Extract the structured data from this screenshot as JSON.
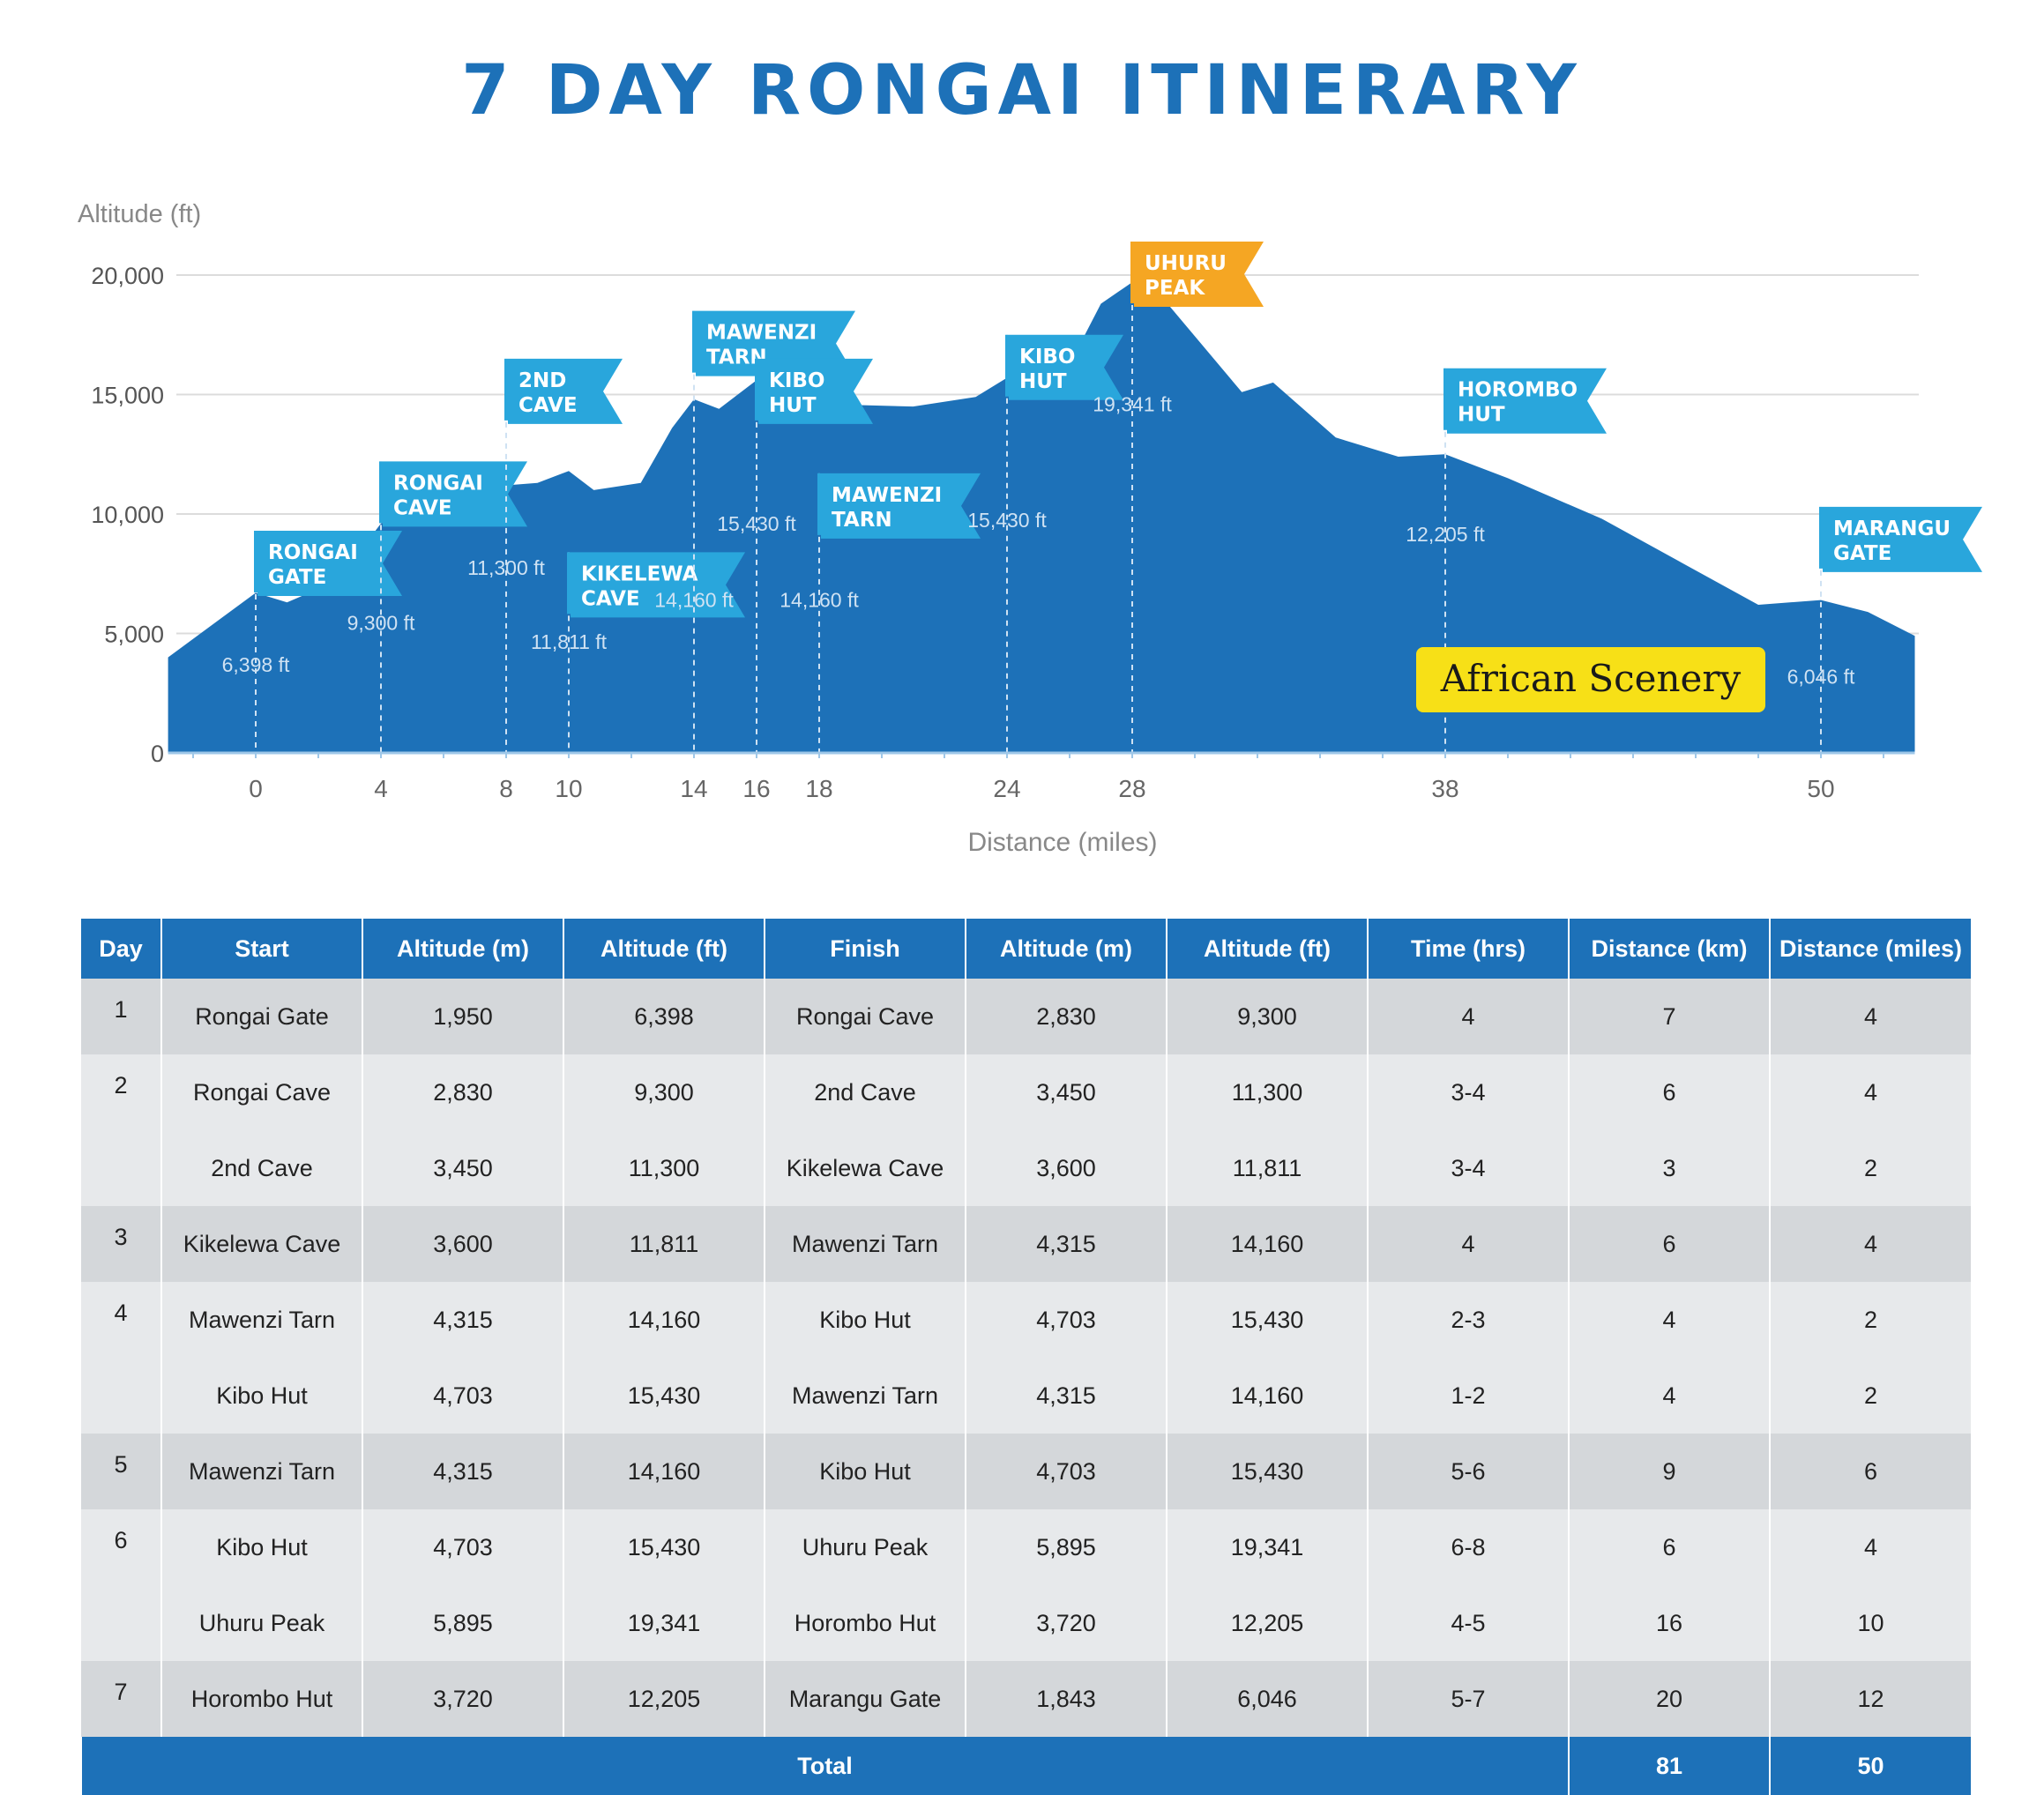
{
  "title": "7 DAY RONGAI ITINERARY",
  "colors": {
    "primary": "#1d71b8",
    "flag": "#29a6dc",
    "summit_flag": "#f5a623",
    "watermark_bg": "#f7e017"
  },
  "watermark": "African Scenery",
  "chart_data": {
    "type": "area",
    "title": "7 DAY RONGAI ITINERARY",
    "xlabel": "Distance (miles)",
    "ylabel": "Altitude (ft)",
    "xlim": [
      -2,
      53
    ],
    "ylim": [
      0,
      20000
    ],
    "x_ticks": [
      0,
      4,
      8,
      10,
      14,
      16,
      18,
      24,
      28,
      38,
      50
    ],
    "y_ticks": [
      {
        "value": 0,
        "label": "0"
      },
      {
        "value": 5000,
        "label": "5,000"
      },
      {
        "value": 10000,
        "label": "10,000"
      },
      {
        "value": 15000,
        "label": "15,000"
      },
      {
        "value": 20000,
        "label": "20,000"
      }
    ],
    "profile": [
      [
        -2.8,
        4000
      ],
      [
        0,
        6700
      ],
      [
        1,
        6300
      ],
      [
        2.6,
        7200
      ],
      [
        4,
        9600
      ],
      [
        5,
        10000
      ],
      [
        6.5,
        10100
      ],
      [
        8,
        11200
      ],
      [
        9,
        11300
      ],
      [
        10,
        11800
      ],
      [
        10.8,
        11000
      ],
      [
        12.3,
        11300
      ],
      [
        13.3,
        13600
      ],
      [
        14,
        14800
      ],
      [
        14.8,
        14400
      ],
      [
        16,
        15600
      ],
      [
        17,
        14600
      ],
      [
        18,
        14600
      ],
      [
        21,
        14500
      ],
      [
        23,
        14900
      ],
      [
        24,
        15700
      ],
      [
        25.5,
        15000
      ],
      [
        27,
        18800
      ],
      [
        28,
        19700
      ],
      [
        29,
        19000
      ],
      [
        31.5,
        15100
      ],
      [
        32.5,
        15500
      ],
      [
        34.5,
        13200
      ],
      [
        36.5,
        12400
      ],
      [
        38,
        12500
      ],
      [
        40,
        11500
      ],
      [
        43,
        9800
      ],
      [
        48,
        6200
      ],
      [
        50,
        6400
      ],
      [
        51.5,
        5900
      ],
      [
        53,
        4900
      ]
    ],
    "points": [
      {
        "x": 0,
        "label": "6,398 ft",
        "flag": "RONGAI GATE",
        "flag_alt": 9300,
        "label_alt": 3400
      },
      {
        "x": 4,
        "label": "9,300 ft",
        "flag": "RONGAI CAVE",
        "flag_alt": 12200,
        "label_alt": 5150
      },
      {
        "x": 8,
        "label": "11,300 ft",
        "flag": "2ND CAVE",
        "flag_alt": 16500,
        "label_alt": 7450
      },
      {
        "x": 10,
        "label": "11,811 ft",
        "flag": "KIKELEWA CAVE",
        "flag_alt": 8400,
        "label_alt": 4350
      },
      {
        "x": 14,
        "label": "14,160 ft",
        "flag": "MAWENZI TARN",
        "flag_alt": 18500,
        "label_alt": 6100
      },
      {
        "x": 16,
        "label": "15,430 ft",
        "flag": "KIBO HUT",
        "flag_alt": 16500,
        "label_alt": 9300
      },
      {
        "x": 18,
        "label": "14,160 ft",
        "flag": "MAWENZI TARN",
        "flag_alt": 11700,
        "label_alt": 6100
      },
      {
        "x": 24,
        "label": "15,430 ft",
        "flag": "KIBO HUT",
        "flag_alt": 17500,
        "label_alt": 9450
      },
      {
        "x": 28,
        "label": "19,341 ft",
        "flag": "UHURU PEAK",
        "flag_alt": 21400,
        "label_alt": 14300,
        "summit": true
      },
      {
        "x": 38,
        "label": "12,205 ft",
        "flag": "HOROMBO HUT",
        "flag_alt": 16100,
        "label_alt": 8850
      },
      {
        "x": 50,
        "label": "6,046 ft",
        "flag": "MARANGU GATE",
        "flag_alt": 10300,
        "label_alt": 2900
      }
    ]
  },
  "table": {
    "headers": [
      "Day",
      "Start",
      "Altitude (m)",
      "Altitude (ft)",
      "Finish",
      "Altitude (m)",
      "Altitude (ft)",
      "Time (hrs)",
      "Distance (km)",
      "Distance (miles)"
    ],
    "rows": [
      {
        "day": "1",
        "start": "Rongai Gate",
        "start_m": "1,950",
        "start_ft": "6,398",
        "finish": "Rongai Cave",
        "finish_m": "2,830",
        "finish_ft": "9,300",
        "time": "4",
        "km": "7",
        "miles": "4"
      },
      {
        "day": "2",
        "start": "Rongai Cave",
        "start_m": "2,830",
        "start_ft": "9,300",
        "finish": "2nd Cave",
        "finish_m": "3,450",
        "finish_ft": "11,300",
        "time": "3-4",
        "km": "6",
        "miles": "4"
      },
      {
        "day": "",
        "start": "2nd Cave",
        "start_m": "3,450",
        "start_ft": "11,300",
        "finish": "Kikelewa Cave",
        "finish_m": "3,600",
        "finish_ft": "11,811",
        "time": "3-4",
        "km": "3",
        "miles": "2"
      },
      {
        "day": "3",
        "start": "Kikelewa Cave",
        "start_m": "3,600",
        "start_ft": "11,811",
        "finish": "Mawenzi Tarn",
        "finish_m": "4,315",
        "finish_ft": "14,160",
        "time": "4",
        "km": "6",
        "miles": "4"
      },
      {
        "day": "4",
        "start": "Mawenzi Tarn",
        "start_m": "4,315",
        "start_ft": "14,160",
        "finish": "Kibo Hut",
        "finish_m": "4,703",
        "finish_ft": "15,430",
        "time": "2-3",
        "km": "4",
        "miles": "2"
      },
      {
        "day": "",
        "start": "Kibo Hut",
        "start_m": "4,703",
        "start_ft": "15,430",
        "finish": "Mawenzi Tarn",
        "finish_m": "4,315",
        "finish_ft": "14,160",
        "time": "1-2",
        "km": "4",
        "miles": "2"
      },
      {
        "day": "5",
        "start": "Mawenzi Tarn",
        "start_m": "4,315",
        "start_ft": "14,160",
        "finish": "Kibo Hut",
        "finish_m": "4,703",
        "finish_ft": "15,430",
        "time": "5-6",
        "km": "9",
        "miles": "6"
      },
      {
        "day": "6",
        "start": "Kibo Hut",
        "start_m": "4,703",
        "start_ft": "15,430",
        "finish": "Uhuru Peak",
        "finish_m": "5,895",
        "finish_ft": "19,341",
        "time": "6-8",
        "km": "6",
        "miles": "4"
      },
      {
        "day": "",
        "start": "Uhuru Peak",
        "start_m": "5,895",
        "start_ft": "19,341",
        "finish": "Horombo Hut",
        "finish_m": "3,720",
        "finish_ft": "12,205",
        "time": "4-5",
        "km": "16",
        "miles": "10"
      },
      {
        "day": "7",
        "start": "Horombo Hut",
        "start_m": "3,720",
        "start_ft": "12,205",
        "finish": "Marangu Gate",
        "finish_m": "1,843",
        "finish_ft": "6,046",
        "time": "5-7",
        "km": "20",
        "miles": "12"
      }
    ],
    "total": {
      "label": "Total",
      "km": "81",
      "miles": "50"
    }
  }
}
